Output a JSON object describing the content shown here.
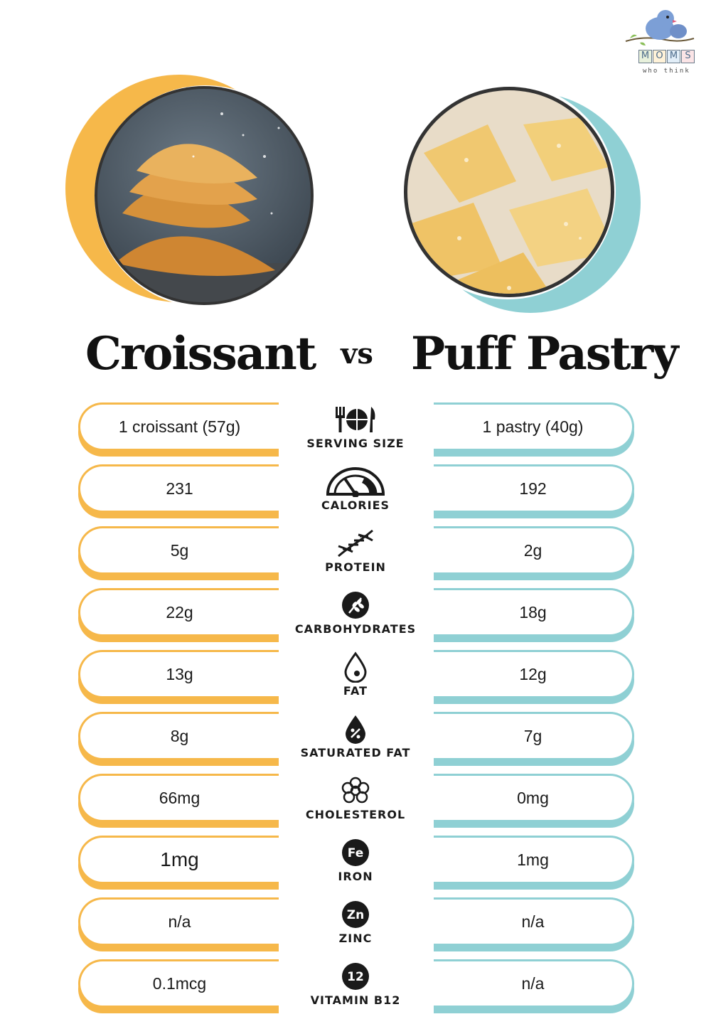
{
  "brand": {
    "blocks": [
      "M",
      "O",
      "M",
      "S"
    ],
    "tagline": "who think"
  },
  "titles": {
    "left": "Croissant",
    "vs": "vs",
    "right": "Puff Pastry"
  },
  "colors": {
    "left_accent": "#f6b84a",
    "right_accent": "#8fd0d4"
  },
  "rows": [
    {
      "label": "SERVING SIZE",
      "icon": "fork-plate-knife-icon",
      "left": "1 croissant (57g)",
      "right": "1 pastry (40g)"
    },
    {
      "label": "CALORIES",
      "icon": "gauge-icon",
      "left": "231",
      "right": "192"
    },
    {
      "label": "PROTEIN",
      "icon": "dna-icon",
      "left": "5g",
      "right": "2g"
    },
    {
      "label": "CARBOHYDRATES",
      "icon": "wheat-icon",
      "left": "22g",
      "right": "18g"
    },
    {
      "label": "FAT",
      "icon": "droplet-icon",
      "left": "13g",
      "right": "12g"
    },
    {
      "label": "SATURATED FAT",
      "icon": "percent-drop-icon",
      "left": "8g",
      "right": "7g"
    },
    {
      "label": "CHOLESTEROL",
      "icon": "cholesterol-icon",
      "left": "66mg",
      "right": "0mg"
    },
    {
      "label": "IRON",
      "icon": "fe-icon",
      "badge": "Fe",
      "left": "1mg",
      "right": "1mg"
    },
    {
      "label": "ZINC",
      "icon": "zn-icon",
      "badge": "Zn",
      "left": "n/a",
      "right": "n/a"
    },
    {
      "label": "VITAMIN B12",
      "icon": "b12-icon",
      "badge": "12",
      "left": "0.1mcg",
      "right": "n/a"
    }
  ]
}
